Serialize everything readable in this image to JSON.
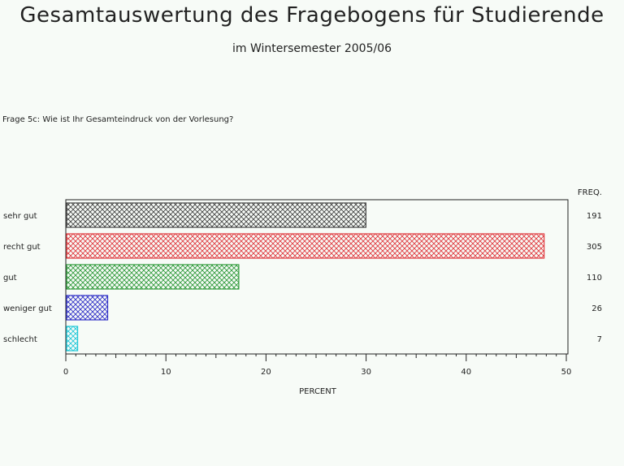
{
  "header": {
    "title": "Gesamtauswertung des Fragebogens für Studierende",
    "subtitle": "im Wintersemester 2005/06"
  },
  "question": "Frage 5c: Wie ist Ihr Gesamteindruck von der Vorlesung?",
  "chart_data": {
    "type": "bar",
    "orientation": "horizontal",
    "categories": [
      "sehr gut",
      "recht gut",
      "gut",
      "weniger gut",
      "schlecht"
    ],
    "values": [
      29.9,
      47.7,
      17.2,
      4.1,
      1.1
    ],
    "freq": [
      191,
      305,
      110,
      26,
      7
    ],
    "freq_label": "FREQ.",
    "xlabel": "PERCENT",
    "xlim": [
      0,
      50
    ],
    "xticks": [
      0,
      10,
      20,
      30,
      40,
      50
    ],
    "grid": false,
    "colors": [
      "#444444",
      "#e0383e",
      "#2f9a3a",
      "#3030c8",
      "#20c8d8"
    ]
  }
}
